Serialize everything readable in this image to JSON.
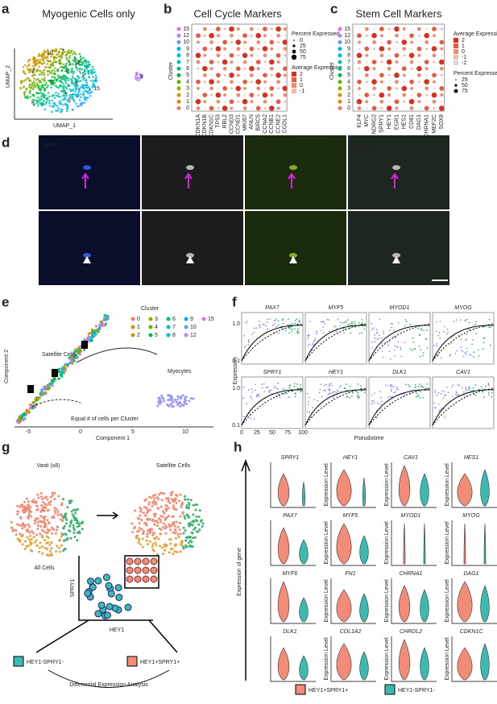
{
  "a": {
    "label": "a",
    "title": "Myogenic Cells only",
    "x_axis": "UMAP_1",
    "y_axis": "UMAP_2",
    "clusters": [
      "10",
      "7",
      "12",
      "2",
      "4",
      "6",
      "0",
      "5",
      "3",
      "8",
      "15",
      "1",
      "9"
    ]
  },
  "b": {
    "label": "b",
    "title": "Cell Cycle Markers",
    "y_axis": "Cluster",
    "clusters": [
      "15",
      "12",
      "10",
      "9",
      "8",
      "7",
      "6",
      "5",
      "4",
      "3",
      "2",
      "1",
      "0"
    ],
    "genes": [
      "CDKN1A",
      "CDKN1B",
      "CDKN1C",
      "TP53",
      "RBL2",
      "CCND3",
      "CCND1",
      "MKI67",
      "ANLN",
      "BIRC5",
      "CCNA2",
      "CCNB1",
      "CCNE2",
      "CGDL1"
    ],
    "size_legend": "Percent Expressed",
    "size_levels": [
      "0",
      "25",
      "50",
      "75"
    ],
    "color_legend": "Average Expression",
    "color_levels": [
      "2",
      "1",
      "0",
      "-1"
    ]
  },
  "c": {
    "label": "c",
    "title": "Stem Cell Markers",
    "y_axis": "Cluster",
    "clusters": [
      "15",
      "12",
      "10",
      "9",
      "8",
      "7",
      "6",
      "5",
      "4",
      "3",
      "2",
      "1",
      "0"
    ],
    "genes": [
      "KLF4",
      "MYC",
      "NDRG2",
      "SPRY1",
      "HEY1",
      "EGR1",
      "HES1",
      "CD81",
      "DAG1",
      "CHRNA1",
      "MEF2C",
      "SOX8"
    ],
    "color_legend": "Average Expression",
    "color_levels": [
      "2",
      "1",
      "0",
      "-1",
      "-2"
    ],
    "size_legend": "Percent Expressed",
    "size_levels": [
      "25",
      "50",
      "75"
    ]
  },
  "d": {
    "label": "d",
    "channels": [
      "DAPI",
      "PAX7",
      "SPRY1",
      "MERGED"
    ]
  },
  "e": {
    "label": "e",
    "legend_title": "Cluster",
    "clusters": [
      "0",
      "1",
      "2",
      "3",
      "4",
      "5",
      "6",
      "7",
      "8",
      "9",
      "10",
      "12",
      "15"
    ],
    "satellite": "Satellite Cells",
    "myocytes": "Myocytes",
    "note": "Equal # of cells per Cluster",
    "x_axis": "Component 1",
    "y_axis": "Component 2",
    "branches": [
      "1",
      "2",
      "3"
    ],
    "xticks": [
      "-5",
      "0",
      "5",
      "10"
    ]
  },
  "f": {
    "label": "f",
    "genes": [
      "PAX7",
      "MYF5",
      "MYOD1",
      "MYOG",
      "SPRY1",
      "HEY1",
      "DLK1",
      "CAV1"
    ],
    "y_axis": "Expression",
    "x_axis": "Pseudotime",
    "xticks": [
      "0",
      "25",
      "50",
      "75",
      "100"
    ],
    "yticks": [
      "1.0",
      "0.1"
    ]
  },
  "g": {
    "label": "g",
    "left_title": "Vasti (x8)",
    "right_title": "Satellite Cells",
    "all_cells": "All Cells",
    "y_axis": "SPRY1",
    "x_axis": "HEY1",
    "neg_group": "HEY1-SPRY1-",
    "pos_group": "HEY1+SPRY1+",
    "analysis": "Differential Expression Analysis"
  },
  "h": {
    "label": "h",
    "genes": [
      "SPRY1",
      "HEY1",
      "CAV1",
      "HES1",
      "PAX7",
      "MYF5",
      "MYOD1",
      "MYOG",
      "MYF6",
      "FN1",
      "CHRNA1",
      "DAG1",
      "DLK1",
      "COL1A2",
      "CHRDL2",
      "CDKN1C"
    ],
    "y_axis": "Expression Level",
    "side_label": "Expression of gene",
    "legend": [
      "HEY1+SPRY1+",
      "HEY1-SPRY1-"
    ]
  }
}
